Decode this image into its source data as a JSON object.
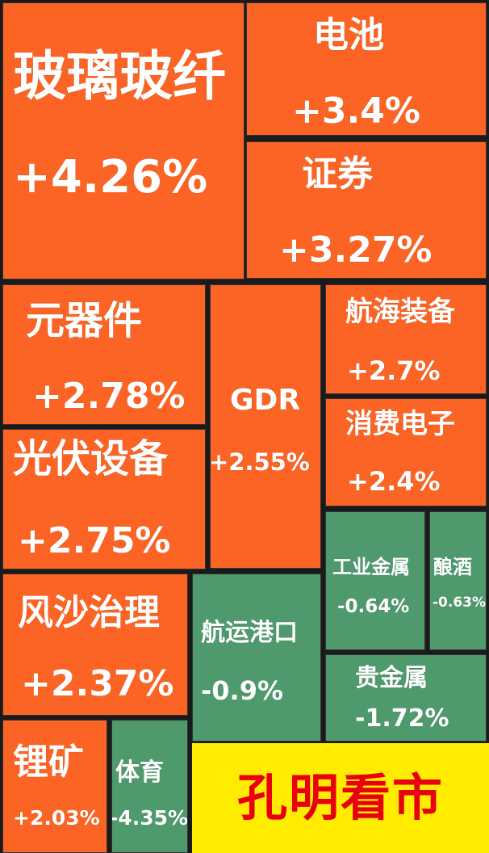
{
  "chart_data": {
    "type": "heatmap",
    "title": "",
    "colors": {
      "up": "#fb6424",
      "down": "#4f9a6c",
      "brand_bg": "#ffec00",
      "brand_text": "#e8000f"
    },
    "sectors": [
      {
        "name": "玻璃玻纤",
        "label": "+4.26%",
        "value": 4.26
      },
      {
        "name": "电池",
        "label": "+3.4%",
        "value": 3.4
      },
      {
        "name": "证券",
        "label": "+3.27%",
        "value": 3.27
      },
      {
        "name": "元器件",
        "label": "+2.78%",
        "value": 2.78
      },
      {
        "name": "GDR",
        "label": "+2.55%",
        "value": 2.55
      },
      {
        "name": "航海装备",
        "label": "+2.7%",
        "value": 2.7
      },
      {
        "name": "消费电子",
        "label": "+2.4%",
        "value": 2.4
      },
      {
        "name": "光伏设备",
        "label": "+2.75%",
        "value": 2.75
      },
      {
        "name": "工业金属",
        "label": "-0.64%",
        "value": -0.64
      },
      {
        "name": "酿酒",
        "label": "-0.63%",
        "value": -0.63
      },
      {
        "name": "风沙治理",
        "label": "+2.37%",
        "value": 2.37
      },
      {
        "name": "航运港口",
        "label": "-0.9%",
        "value": -0.9
      },
      {
        "name": "贵金属",
        "label": "-1.72%",
        "value": -1.72
      },
      {
        "name": "锂矿",
        "label": "+2.03%",
        "value": 2.03
      },
      {
        "name": "体育",
        "label": "-4.35%",
        "value": -4.35
      }
    ]
  },
  "brand": {
    "text": "孔明看市"
  }
}
